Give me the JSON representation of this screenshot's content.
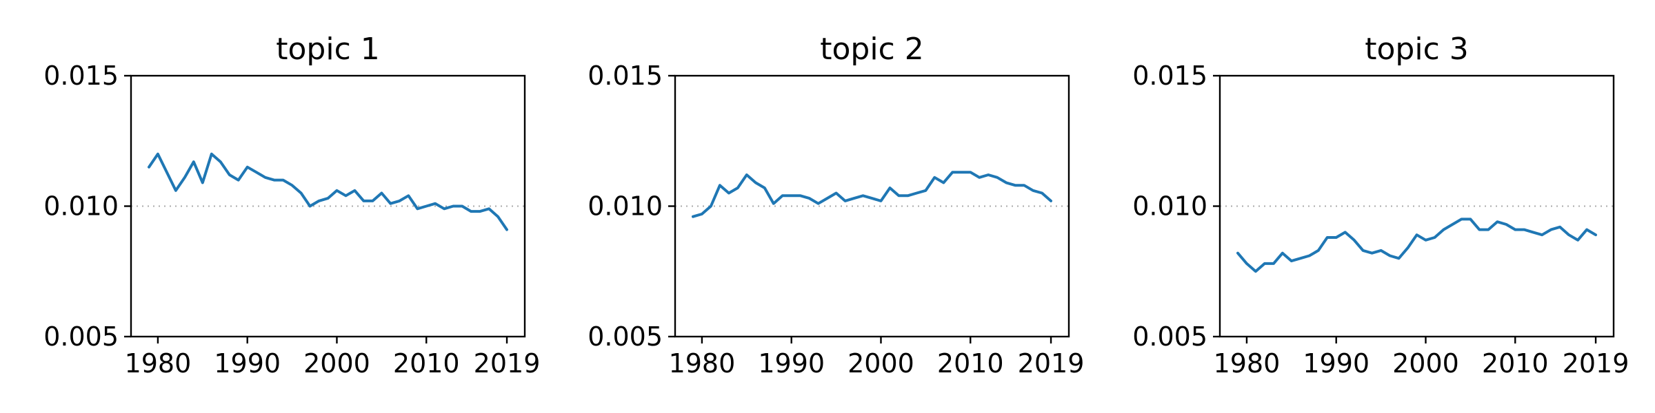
{
  "colors": {
    "line": "#1f77b4",
    "reference_line": "#aaaaaa",
    "axes": "#000000"
  },
  "chart_data": [
    {
      "type": "line",
      "title": "topic 1",
      "xlabel": "",
      "ylabel": "",
      "xlim": [
        1977,
        2021
      ],
      "ylim": [
        0.005,
        0.015
      ],
      "xticks": [
        1980,
        1990,
        2000,
        2010,
        2019
      ],
      "xtick_labels": [
        "1980",
        "1990",
        "2000",
        "2010",
        "2019"
      ],
      "yticks": [
        0.005,
        0.01,
        0.015
      ],
      "ytick_labels": [
        "0.005",
        "0.010",
        "0.015"
      ],
      "reference_line": {
        "y": 0.01,
        "style": "dotted",
        "color": "#aaaaaa"
      },
      "grid": false,
      "series": [
        {
          "x": [
            1979,
            1980,
            1981,
            1982,
            1983,
            1984,
            1985,
            1986,
            1987,
            1988,
            1989,
            1990,
            1991,
            1992,
            1993,
            1994,
            1995,
            1996,
            1997,
            1998,
            1999,
            2000,
            2001,
            2002,
            2003,
            2004,
            2005,
            2006,
            2007,
            2008,
            2009,
            2010,
            2011,
            2012,
            2013,
            2014,
            2015,
            2016,
            2017,
            2018,
            2019
          ],
          "values": [
            0.0115,
            0.012,
            0.0113,
            0.0106,
            0.0111,
            0.0117,
            0.0109,
            0.012,
            0.0117,
            0.0112,
            0.011,
            0.0115,
            0.0113,
            0.0111,
            0.011,
            0.011,
            0.0108,
            0.0105,
            0.01,
            0.0102,
            0.0103,
            0.0106,
            0.0104,
            0.0106,
            0.0102,
            0.0102,
            0.0105,
            0.0101,
            0.0102,
            0.0104,
            0.0099,
            0.01,
            0.0101,
            0.0099,
            0.01,
            0.01,
            0.0098,
            0.0098,
            0.0099,
            0.0096,
            0.0091
          ]
        }
      ]
    },
    {
      "type": "line",
      "title": "topic 2",
      "xlabel": "",
      "ylabel": "",
      "xlim": [
        1977,
        2021
      ],
      "ylim": [
        0.005,
        0.015
      ],
      "xticks": [
        1980,
        1990,
        2000,
        2010,
        2019
      ],
      "xtick_labels": [
        "1980",
        "1990",
        "2000",
        "2010",
        "2019"
      ],
      "yticks": [
        0.005,
        0.01,
        0.015
      ],
      "ytick_labels": [
        "0.005",
        "0.010",
        "0.015"
      ],
      "reference_line": {
        "y": 0.01,
        "style": "dotted",
        "color": "#aaaaaa"
      },
      "grid": false,
      "series": [
        {
          "x": [
            1979,
            1980,
            1981,
            1982,
            1983,
            1984,
            1985,
            1986,
            1987,
            1988,
            1989,
            1990,
            1991,
            1992,
            1993,
            1994,
            1995,
            1996,
            1997,
            1998,
            1999,
            2000,
            2001,
            2002,
            2003,
            2004,
            2005,
            2006,
            2007,
            2008,
            2009,
            2010,
            2011,
            2012,
            2013,
            2014,
            2015,
            2016,
            2017,
            2018,
            2019
          ],
          "values": [
            0.0096,
            0.0097,
            0.01,
            0.0108,
            0.0105,
            0.0107,
            0.0112,
            0.0109,
            0.0107,
            0.0101,
            0.0104,
            0.0104,
            0.0104,
            0.0103,
            0.0101,
            0.0103,
            0.0105,
            0.0102,
            0.0103,
            0.0104,
            0.0103,
            0.0102,
            0.0107,
            0.0104,
            0.0104,
            0.0105,
            0.0106,
            0.0111,
            0.0109,
            0.0113,
            0.0113,
            0.0113,
            0.0111,
            0.0112,
            0.0111,
            0.0109,
            0.0108,
            0.0108,
            0.0106,
            0.0105,
            0.0102
          ]
        }
      ]
    },
    {
      "type": "line",
      "title": "topic 3",
      "xlabel": "",
      "ylabel": "",
      "xlim": [
        1977,
        2021
      ],
      "ylim": [
        0.005,
        0.015
      ],
      "xticks": [
        1980,
        1990,
        2000,
        2010,
        2019
      ],
      "xtick_labels": [
        "1980",
        "1990",
        "2000",
        "2010",
        "2019"
      ],
      "yticks": [
        0.005,
        0.01,
        0.015
      ],
      "ytick_labels": [
        "0.005",
        "0.010",
        "0.015"
      ],
      "reference_line": {
        "y": 0.01,
        "style": "dotted",
        "color": "#aaaaaa"
      },
      "grid": false,
      "series": [
        {
          "x": [
            1979,
            1980,
            1981,
            1982,
            1983,
            1984,
            1985,
            1986,
            1987,
            1988,
            1989,
            1990,
            1991,
            1992,
            1993,
            1994,
            1995,
            1996,
            1997,
            1998,
            1999,
            2000,
            2001,
            2002,
            2003,
            2004,
            2005,
            2006,
            2007,
            2008,
            2009,
            2010,
            2011,
            2012,
            2013,
            2014,
            2015,
            2016,
            2017,
            2018,
            2019
          ],
          "values": [
            0.0082,
            0.0078,
            0.0075,
            0.0078,
            0.0078,
            0.0082,
            0.0079,
            0.008,
            0.0081,
            0.0083,
            0.0088,
            0.0088,
            0.009,
            0.0087,
            0.0083,
            0.0082,
            0.0083,
            0.0081,
            0.008,
            0.0084,
            0.0089,
            0.0087,
            0.0088,
            0.0091,
            0.0093,
            0.0095,
            0.0095,
            0.0091,
            0.0091,
            0.0094,
            0.0093,
            0.0091,
            0.0091,
            0.009,
            0.0089,
            0.0091,
            0.0092,
            0.0089,
            0.0087,
            0.0091,
            0.0089
          ]
        }
      ]
    }
  ]
}
